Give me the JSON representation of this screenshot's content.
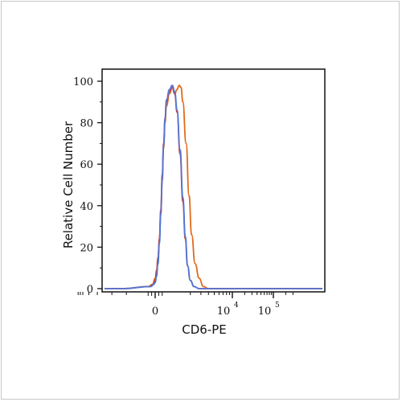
{
  "chart_data": {
    "type": "line",
    "xlabel": "CD6-PE",
    "ylabel": "Relative Cell Number",
    "ylim": [
      0,
      100
    ],
    "y_ticks": [
      "0",
      "20",
      "40",
      "60",
      "80",
      "100"
    ],
    "x_axis_scale": "biexponential",
    "x_ticks": [
      {
        "position": 0,
        "base": "0",
        "exp": ""
      },
      {
        "position": 10000,
        "base": "10",
        "exp": "4"
      },
      {
        "position": 100000,
        "base": "10",
        "exp": "5"
      }
    ],
    "series": [
      {
        "color": "#e06a1a",
        "points": [
          [
            -1200,
            0
          ],
          [
            -500,
            1
          ],
          [
            -200,
            2
          ],
          [
            0,
            5
          ],
          [
            100,
            9
          ],
          [
            200,
            15
          ],
          [
            300,
            24
          ],
          [
            400,
            36
          ],
          [
            500,
            52
          ],
          [
            600,
            68
          ],
          [
            700,
            80
          ],
          [
            800,
            88
          ],
          [
            900,
            94
          ],
          [
            1000,
            97
          ],
          [
            1100,
            94
          ],
          [
            1200,
            96
          ],
          [
            1300,
            98
          ],
          [
            1400,
            97
          ],
          [
            1500,
            90
          ],
          [
            1700,
            70
          ],
          [
            1900,
            45
          ],
          [
            2100,
            26
          ],
          [
            2400,
            12
          ],
          [
            2800,
            5
          ],
          [
            3300,
            1
          ],
          [
            4000,
            0
          ]
        ]
      },
      {
        "color": "#d83a2e",
        "points": [
          [
            -1200,
            0
          ],
          [
            -400,
            1
          ],
          [
            -150,
            2
          ],
          [
            0,
            4
          ],
          [
            100,
            8
          ],
          [
            200,
            14
          ],
          [
            300,
            24
          ],
          [
            400,
            38
          ],
          [
            500,
            55
          ],
          [
            600,
            70
          ],
          [
            700,
            82
          ],
          [
            800,
            90
          ],
          [
            900,
            95
          ],
          [
            1000,
            97
          ],
          [
            1100,
            94
          ],
          [
            1200,
            85
          ],
          [
            1350,
            65
          ],
          [
            1500,
            42
          ],
          [
            1650,
            24
          ],
          [
            1800,
            11
          ],
          [
            2000,
            4
          ],
          [
            2300,
            1
          ],
          [
            2800,
            0
          ]
        ]
      },
      {
        "color": "#4f77d8",
        "points": [
          [
            -1200,
            0
          ],
          [
            -300,
            1
          ],
          [
            -100,
            2
          ],
          [
            0,
            3
          ],
          [
            100,
            6
          ],
          [
            200,
            12
          ],
          [
            300,
            22
          ],
          [
            400,
            36
          ],
          [
            500,
            53
          ],
          [
            600,
            69
          ],
          [
            700,
            82
          ],
          [
            800,
            91
          ],
          [
            900,
            96
          ],
          [
            1000,
            98
          ],
          [
            1100,
            95
          ],
          [
            1200,
            86
          ],
          [
            1350,
            67
          ],
          [
            1500,
            44
          ],
          [
            1650,
            25
          ],
          [
            1800,
            11
          ],
          [
            2000,
            4
          ],
          [
            2300,
            1
          ],
          [
            2800,
            0
          ]
        ]
      }
    ]
  }
}
